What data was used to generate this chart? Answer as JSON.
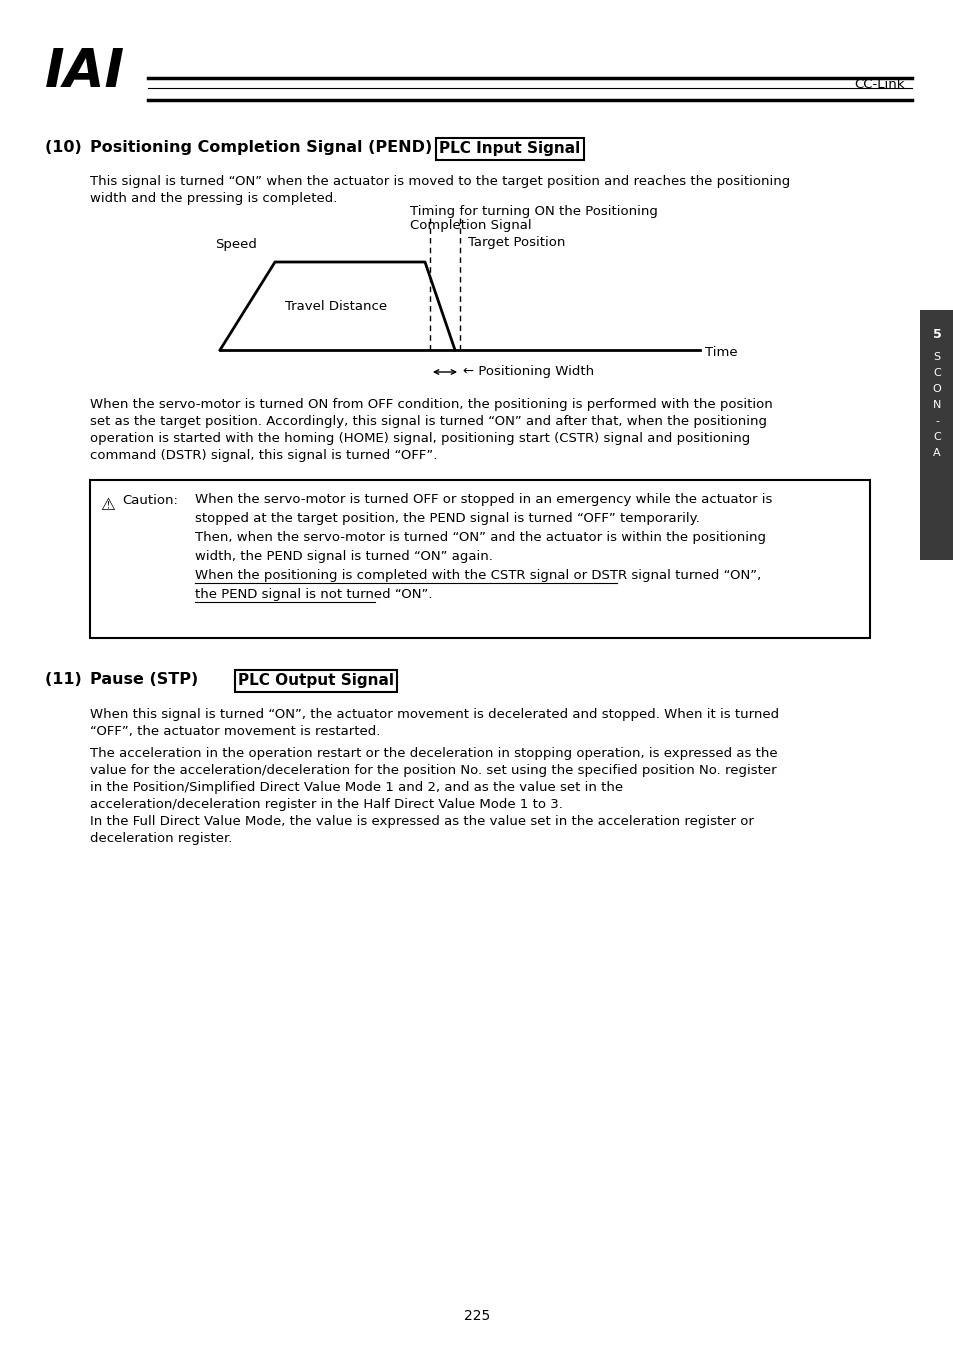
{
  "page_bg": "#ffffff",
  "header_iai_text": "IAI",
  "header_right_text": "CC-Link",
  "section10_number": "(10)  ",
  "section10_title": "Positioning Completion Signal (PEND)",
  "section10_badge": "PLC Input Signal",
  "section10_para1_line1": "This signal is turned “ON” when the actuator is moved to the target position and reaches the positioning",
  "section10_para1_line2": "width and the pressing is completed.",
  "diagram_speed_label": "Speed",
  "diagram_time_label": "Time",
  "diagram_travel_label": "Travel Distance",
  "diagram_timing_line1": "Timing for turning ON the Positioning",
  "diagram_timing_line2": "Completion Signal",
  "diagram_target_label": "Target Position",
  "diagram_poswidth_label": "← Positioning Width",
  "section10_para2_line1": "When the servo-motor is turned ON from OFF condition, the positioning is performed with the position",
  "section10_para2_line2": "set as the target position. Accordingly, this signal is turned “ON” and after that, when the positioning",
  "section10_para2_line3": "operation is started with the homing (HOME) signal, positioning start (CSTR) signal and positioning",
  "section10_para2_line4": "command (DSTR) signal, this signal is turned “OFF”.",
  "caution_title": "Caution:",
  "caution_line1": "When the servo-motor is turned OFF or stopped in an emergency while the actuator is",
  "caution_line2": "stopped at the target position, the PEND signal is turned “OFF” temporarily.",
  "caution_line3": "Then, when the servo-motor is turned “ON” and the actuator is within the positioning",
  "caution_line4": "width, the PEND signal is turned “ON” again.",
  "caution_line5": "When the positioning is completed with the CSTR signal or DSTR signal turned “ON”,",
  "caution_line6": "the PEND signal is not turned “ON”.",
  "section11_number": "(11)  ",
  "section11_title": "Pause (STP)",
  "section11_badge": "PLC Output Signal",
  "section11_para1": "When this signal is turned “ON”, the actuator movement is decelerated and stopped. When it is turned",
  "section11_para2": "“OFF”, the actuator movement is restarted.",
  "section11_para3": "The acceleration in the operation restart or the deceleration in stopping operation, is expressed as the",
  "section11_para4": "value for the acceleration/deceleration for the position No. set using the specified position No. register",
  "section11_para5": "in the Position/Simplified Direct Value Mode 1 and 2, and as the value set in the",
  "section11_para6": "acceleration/deceleration register in the Half Direct Value Mode 1 to 3.",
  "section11_para7": "In the Full Direct Value Mode, the value is expressed as the value set in the acceleration register or",
  "section11_para8": "deceleration register.",
  "sidebar_line1": "5",
  "sidebar_line2": "S",
  "sidebar_line3": "C",
  "sidebar_line4": "O",
  "sidebar_line5": "N",
  "sidebar_line6": "-",
  "sidebar_line7": "C",
  "sidebar_line8": "A",
  "page_number": "225"
}
